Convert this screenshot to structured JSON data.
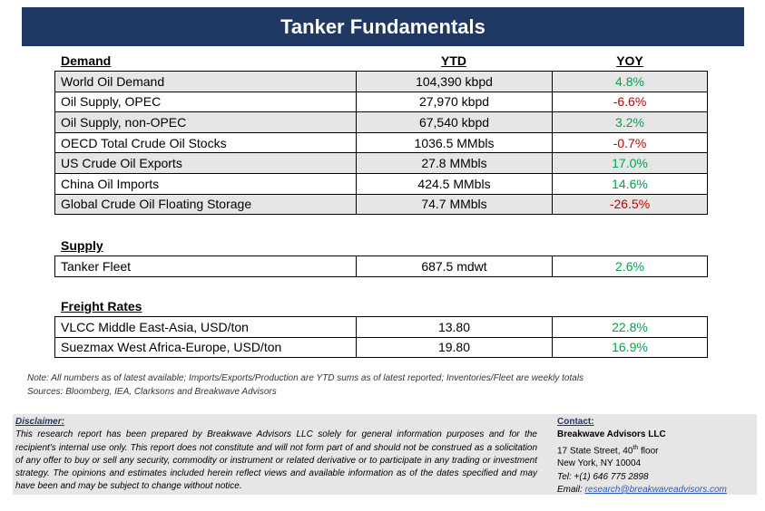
{
  "title": "Tanker Fundamentals",
  "columns": {
    "ytd": "YTD",
    "yoy": "YOY"
  },
  "demand": {
    "heading": "Demand",
    "rows": [
      {
        "label": "World Oil Demand",
        "ytd": "104,390 kbpd",
        "yoy": "4.8%"
      },
      {
        "label": "Oil Supply, OPEC",
        "ytd": "27,970 kbpd",
        "yoy": "-6.6%"
      },
      {
        "label": "Oil Supply, non-OPEC",
        "ytd": "67,540 kbpd",
        "yoy": "3.2%"
      },
      {
        "label": "OECD Total Crude Oil Stocks",
        "ytd": "1036.5 MMbls",
        "yoy": "-0.7%"
      },
      {
        "label": "US Crude Oil Exports",
        "ytd": "27.8 MMbls",
        "yoy": "17.0%"
      },
      {
        "label": "China Oil Imports",
        "ytd": "424.5 MMbls",
        "yoy": "14.6%"
      },
      {
        "label": "Global Crude Oil Floating Storage",
        "ytd": "74.7 MMbls",
        "yoy": "-26.5%"
      }
    ]
  },
  "supply": {
    "heading": "Supply",
    "rows": [
      {
        "label": "Tanker Fleet",
        "ytd": "687.5 mdwt",
        "yoy": "2.6%"
      }
    ]
  },
  "freight": {
    "heading": "Freight Rates",
    "rows": [
      {
        "label": "VLCC Middle East-Asia, USD/ton",
        "ytd": "13.80",
        "yoy": "22.8%"
      },
      {
        "label": "Suezmax West Africa-Europe, USD/ton",
        "ytd": "19.80",
        "yoy": "16.9%"
      }
    ]
  },
  "note": {
    "line1": "Note:  All numbers as of latest available; Imports/Exports/Production are YTD sums as of latest reported; Inventories/Fleet are weekly totals",
    "line2": "Sources: Bloomberg, IEA, Clarksons and Breakwave Advisors"
  },
  "disclaimer": {
    "title": "Disclaimer:",
    "text": "This research report has been prepared by Breakwave Advisors LLC solely for general information purposes and for the recipient's internal use only. This report does not constitute and will not form part of and should not be construed as a solicitation of any offer to buy or sell any security, commodity or instrument or related derivative or to participate in any trading or investment strategy. The opinions and estimates included herein reflect views and available information as of the dates specified and may have been and may be subject to change without notice."
  },
  "contact": {
    "title": "Contact:",
    "company": "Breakwave Advisors LLC",
    "street_pre": "17 State Street, 40",
    "street_sup": "th",
    "street_post": " floor",
    "city": "New York, NY 10004",
    "tel": "Tel: +(1) 646 775 2898",
    "email_label": "Email: ",
    "email": "research@breakwaveadvisors.com"
  },
  "colors": {
    "banner": "#1f3864",
    "positive": "#00a34c",
    "negative": "#c00000",
    "shade": "#e7e6e6"
  }
}
